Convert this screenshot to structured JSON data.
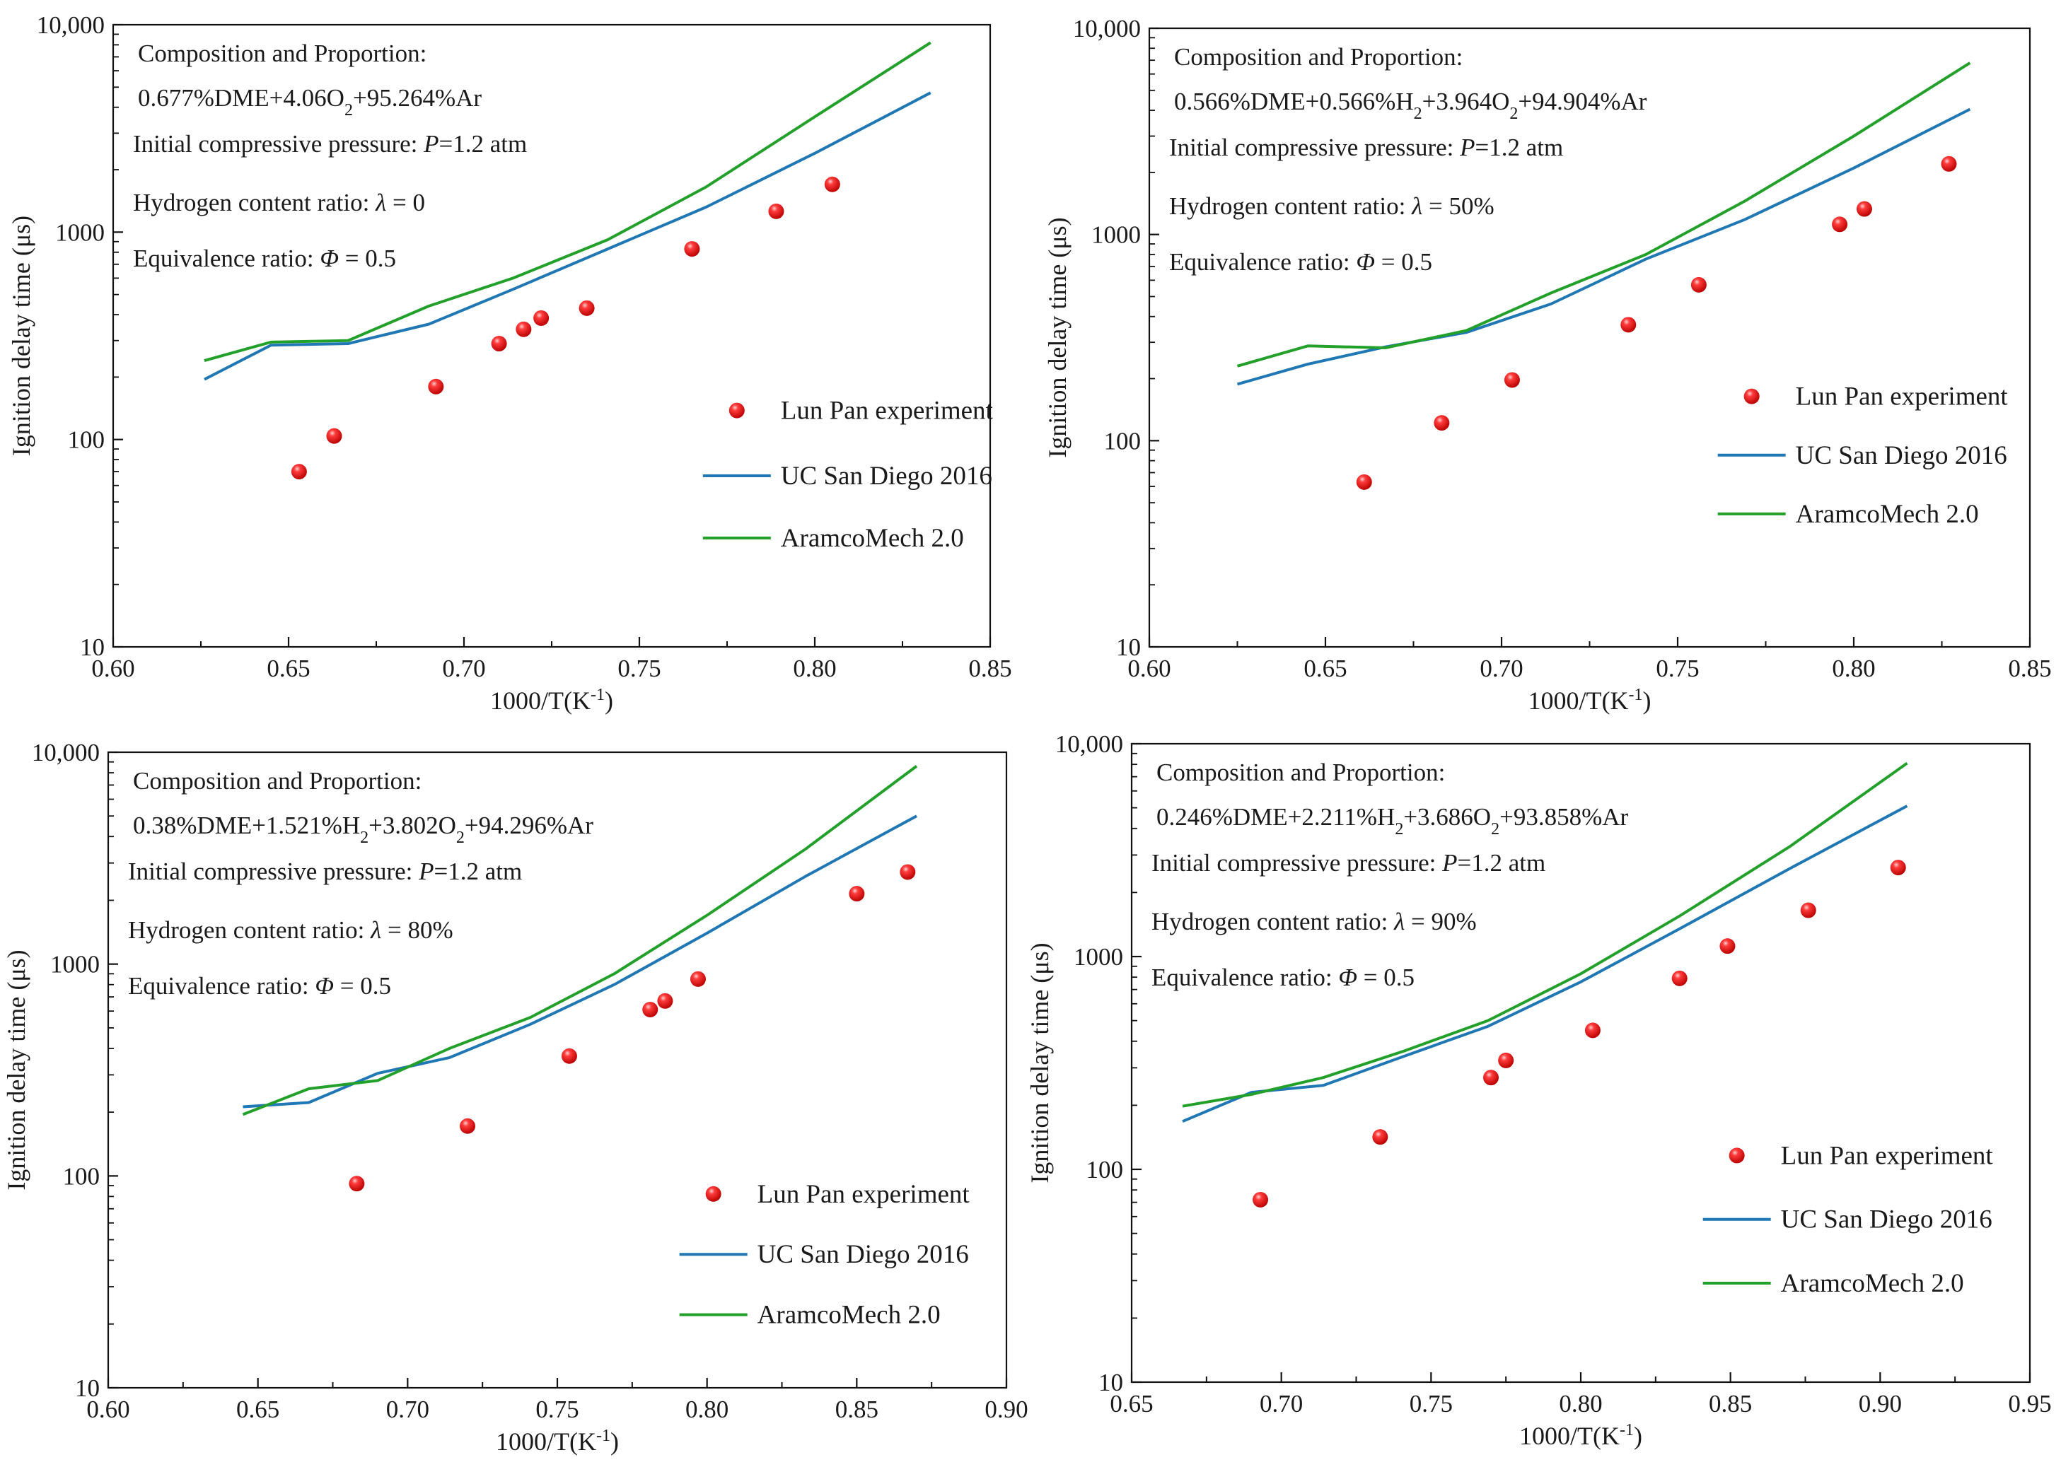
{
  "chart_data": [
    {
      "type": "scatter",
      "xlabel": "1000/T(K⁻¹)",
      "ylabel": "Ignition delay time (μs)",
      "xlim": [
        0.6,
        0.85
      ],
      "ylim": [
        10,
        10000
      ],
      "yscale": "log",
      "x_ticks": [
        "0.60",
        "0.65",
        "0.70",
        "0.75",
        "0.80",
        "0.85"
      ],
      "y_ticks": [
        "10",
        "100",
        "1000",
        "10,000"
      ],
      "annotations": [
        "Composition and Proportion:",
        "0.677%DME+4.06O₂+95.264%Ar",
        "Initial compressive pressure: P=1.2 atm",
        "Hydrogen content ratio:  λ = 0",
        "Equivalence ratio: Φ = 0.5"
      ],
      "legend_position": "right",
      "series": [
        {
          "name": "Lun Pan experiment",
          "kind": "scatter",
          "color": "#e8191b",
          "points": [
            [
              0.653,
              70
            ],
            [
              0.663,
              104
            ],
            [
              0.692,
              180
            ],
            [
              0.71,
              290
            ],
            [
              0.717,
              340
            ],
            [
              0.722,
              385
            ],
            [
              0.735,
              430
            ],
            [
              0.765,
              830
            ],
            [
              0.789,
              1260
            ],
            [
              0.805,
              1700
            ]
          ]
        },
        {
          "name": "UC San Diego 2016",
          "kind": "line",
          "color": "#1f77b4",
          "points": [
            [
              0.626,
              195
            ],
            [
              0.645,
              285
            ],
            [
              0.667,
              290
            ],
            [
              0.69,
              360
            ],
            [
              0.714,
              530
            ],
            [
              0.741,
              830
            ],
            [
              0.769,
              1320
            ],
            [
              0.8,
              2400
            ],
            [
              0.833,
              4700
            ]
          ]
        },
        {
          "name": "AramcoMech 2.0",
          "kind": "line",
          "color": "#22a02a",
          "points": [
            [
              0.626,
              240
            ],
            [
              0.645,
              295
            ],
            [
              0.667,
              300
            ],
            [
              0.69,
              440
            ],
            [
              0.714,
              600
            ],
            [
              0.741,
              920
            ],
            [
              0.769,
              1650
            ],
            [
              0.8,
              3600
            ],
            [
              0.833,
              8200
            ]
          ]
        }
      ]
    },
    {
      "type": "scatter",
      "xlabel": "1000/T(K⁻¹)",
      "ylabel": "Ignition delay time (μs)",
      "xlim": [
        0.6,
        0.85
      ],
      "ylim": [
        10,
        10000
      ],
      "yscale": "log",
      "x_ticks": [
        "0.60",
        "0.65",
        "0.70",
        "0.75",
        "0.80",
        "0.85"
      ],
      "y_ticks": [
        "10",
        "100",
        "1000",
        "10,000"
      ],
      "annotations": [
        "Composition and Proportion:",
        "0.566%DME+0.566%H₂+3.964O₂+94.904%Ar",
        "Initial compressive pressure: P=1.2 atm",
        "Hydrogen content ratio:  λ = 50%",
        "Equivalence ratio: Φ = 0.5"
      ],
      "legend_position": "right",
      "series": [
        {
          "name": "Lun Pan experiment",
          "kind": "scatter",
          "color": "#e8191b",
          "points": [
            [
              0.661,
              63
            ],
            [
              0.683,
              122
            ],
            [
              0.703,
              197
            ],
            [
              0.736,
              365
            ],
            [
              0.756,
              570
            ],
            [
              0.796,
              1120
            ],
            [
              0.803,
              1330
            ],
            [
              0.827,
              2200
            ]
          ]
        },
        {
          "name": "UC San Diego 2016",
          "kind": "line",
          "color": "#1f77b4",
          "points": [
            [
              0.625,
              188
            ],
            [
              0.645,
              235
            ],
            [
              0.667,
              285
            ],
            [
              0.69,
              335
            ],
            [
              0.714,
              460
            ],
            [
              0.741,
              760
            ],
            [
              0.769,
              1180
            ],
            [
              0.8,
              2100
            ],
            [
              0.833,
              4050
            ]
          ]
        },
        {
          "name": "AramcoMech 2.0",
          "kind": "line",
          "color": "#22a02a",
          "points": [
            [
              0.625,
              230
            ],
            [
              0.645,
              288
            ],
            [
              0.667,
              282
            ],
            [
              0.69,
              342
            ],
            [
              0.714,
              520
            ],
            [
              0.741,
              800
            ],
            [
              0.769,
              1450
            ],
            [
              0.8,
              3000
            ],
            [
              0.833,
              6800
            ]
          ]
        }
      ]
    },
    {
      "type": "scatter",
      "xlabel": "1000/T(K⁻¹)",
      "ylabel": "Ignition delay time (μs)",
      "xlim": [
        0.6,
        0.9
      ],
      "ylim": [
        10,
        10000
      ],
      "yscale": "log",
      "x_ticks": [
        "0.60",
        "0.65",
        "0.70",
        "0.75",
        "0.80",
        "0.85",
        "0.90"
      ],
      "y_ticks": [
        "10",
        "100",
        "1000",
        "10,000"
      ],
      "annotations": [
        "Composition and Proportion:",
        "0.38%DME+1.521%H₂+3.802O₂+94.296%Ar",
        "Initial compressive pressure: P=1.2 atm",
        "Hydrogen content ratio:  λ = 80%",
        "Equivalence ratio: Φ = 0.5"
      ],
      "legend_position": "right",
      "series": [
        {
          "name": "Lun Pan experiment",
          "kind": "scatter",
          "color": "#e8191b",
          "points": [
            [
              0.683,
              92
            ],
            [
              0.72,
              172
            ],
            [
              0.754,
              368
            ],
            [
              0.781,
              610
            ],
            [
              0.786,
              670
            ],
            [
              0.797,
              850
            ],
            [
              0.85,
              2150
            ],
            [
              0.867,
              2720
            ]
          ]
        },
        {
          "name": "UC San Diego 2016",
          "kind": "line",
          "color": "#1f77b4",
          "points": [
            [
              0.645,
              212
            ],
            [
              0.667,
              222
            ],
            [
              0.69,
              305
            ],
            [
              0.714,
              362
            ],
            [
              0.741,
              520
            ],
            [
              0.769,
              800
            ],
            [
              0.8,
              1400
            ],
            [
              0.833,
              2600
            ],
            [
              0.87,
              5000
            ]
          ]
        },
        {
          "name": "AramcoMech 2.0",
          "kind": "line",
          "color": "#22a02a",
          "points": [
            [
              0.645,
              195
            ],
            [
              0.667,
              258
            ],
            [
              0.69,
              282
            ],
            [
              0.714,
              400
            ],
            [
              0.741,
              560
            ],
            [
              0.769,
              900
            ],
            [
              0.8,
              1700
            ],
            [
              0.833,
              3500
            ],
            [
              0.87,
              8600
            ]
          ]
        }
      ]
    },
    {
      "type": "scatter",
      "xlabel": "1000/T(K⁻¹)",
      "ylabel": "Ignition delay time (μs)",
      "xlim": [
        0.65,
        0.95
      ],
      "ylim": [
        10,
        10000
      ],
      "yscale": "log",
      "x_ticks": [
        "0.65",
        "0.70",
        "0.75",
        "0.80",
        "0.85",
        "0.90",
        "0.95"
      ],
      "y_ticks": [
        "10",
        "100",
        "1000",
        "10,000"
      ],
      "annotations": [
        "Composition and Proportion:",
        "0.246%DME+2.211%H₂+3.686O₂+93.858%Ar",
        "Initial compressive pressure: P=1.2 atm",
        "Hydrogen content ratio:  λ = 90%",
        "Equivalence ratio: Φ = 0.5"
      ],
      "legend_position": "right",
      "series": [
        {
          "name": "Lun Pan  experiment",
          "kind": "scatter",
          "color": "#e8191b",
          "points": [
            [
              0.693,
              72
            ],
            [
              0.733,
              142
            ],
            [
              0.77,
              270
            ],
            [
              0.775,
              325
            ],
            [
              0.804,
              450
            ],
            [
              0.833,
              790
            ],
            [
              0.849,
              1120
            ],
            [
              0.876,
              1650
            ],
            [
              0.906,
              2620
            ]
          ]
        },
        {
          "name": "UC San Diego 2016",
          "kind": "line",
          "color": "#1f77b4",
          "points": [
            [
              0.667,
              168
            ],
            [
              0.69,
              230
            ],
            [
              0.714,
              248
            ],
            [
              0.741,
              340
            ],
            [
              0.769,
              470
            ],
            [
              0.8,
              760
            ],
            [
              0.833,
              1350
            ],
            [
              0.87,
              2600
            ],
            [
              0.909,
              5100
            ]
          ]
        },
        {
          "name": "AramcoMech 2.0",
          "kind": "line",
          "color": "#22a02a",
          "points": [
            [
              0.667,
              198
            ],
            [
              0.69,
              225
            ],
            [
              0.714,
              270
            ],
            [
              0.741,
              360
            ],
            [
              0.769,
              500
            ],
            [
              0.8,
              830
            ],
            [
              0.833,
              1550
            ],
            [
              0.87,
              3300
            ],
            [
              0.909,
              8100
            ]
          ]
        }
      ]
    }
  ]
}
